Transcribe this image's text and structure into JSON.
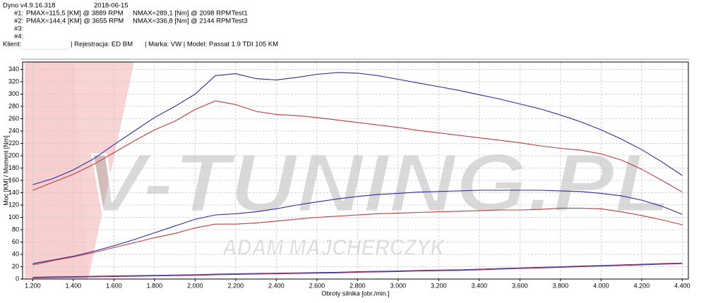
{
  "header": {
    "app": "Dyno v4.9.16.318",
    "date": "2018-06-15",
    "tests": [
      {
        "id": "#1:",
        "pmax": "PMAX=115,5 [KM] @ 3889 RPM",
        "nmax": "NMAX=289,1 [Nm] @ 2098 RPM",
        "name": "Test1"
      },
      {
        "id": "#2:",
        "pmax": "PMAX=144,4 [KM] @ 3655 RPM",
        "nmax": "NMAX=336,8 [Nm] @ 2144 RPM",
        "name": "Test3"
      }
    ],
    "slots": [
      "#3:",
      "#4:"
    ],
    "client": "Klient:",
    "registration": "| Rejestracja: ED BM",
    "vehicle": "| Marka: VW | Model: Passat 1.9 TDI 105 KM"
  },
  "chart_data": {
    "type": "line",
    "xlabel": "Obroty silnika [obr./min.]",
    "ylabel": "Moc [KM] / Moment [Nm]",
    "watermark": {
      "logo": "V-TUNING.PL",
      "author": "ADAM MAJCHERCZYK"
    },
    "x": [
      1200,
      1300,
      1400,
      1500,
      1600,
      1700,
      1800,
      1900,
      2000,
      2100,
      2200,
      2300,
      2400,
      2500,
      2600,
      2700,
      2800,
      2900,
      3000,
      3100,
      3200,
      3300,
      3400,
      3500,
      3600,
      3700,
      3800,
      3900,
      4000,
      4100,
      4200,
      4300,
      4400
    ],
    "xlim": [
      1150,
      4430
    ],
    "ylim": [
      0,
      352
    ],
    "xticks": [
      {
        "value": 1200,
        "label": "1.200"
      },
      {
        "value": 1400,
        "label": "1.400"
      },
      {
        "value": 1600,
        "label": "1.600"
      },
      {
        "value": 1800,
        "label": "1.800"
      },
      {
        "value": 2000,
        "label": "2.000"
      },
      {
        "value": 2200,
        "label": "2.200"
      },
      {
        "value": 2400,
        "label": "2.400"
      },
      {
        "value": 2600,
        "label": "2.600"
      },
      {
        "value": 2800,
        "label": "2.800"
      },
      {
        "value": 3000,
        "label": "3.000"
      },
      {
        "value": 3200,
        "label": "3.200"
      },
      {
        "value": 3400,
        "label": "3.400"
      },
      {
        "value": 3600,
        "label": "3.600"
      },
      {
        "value": 3800,
        "label": "3.800"
      },
      {
        "value": 4000,
        "label": "4.000"
      },
      {
        "value": 4200,
        "label": "4.200"
      },
      {
        "value": 4400,
        "label": "4.400"
      }
    ],
    "yticks": [
      0,
      20,
      40,
      60,
      80,
      100,
      120,
      140,
      160,
      180,
      200,
      220,
      240,
      260,
      280,
      300,
      320,
      340
    ],
    "grid": true,
    "series": [
      {
        "color": "#2b2b9c",
        "values": [
          153,
          163,
          177,
          195,
          218,
          240,
          262,
          280,
          300,
          330,
          333,
          325,
          323,
          327,
          332,
          335,
          334,
          330,
          324,
          318,
          312,
          306,
          299,
          292,
          284,
          276,
          266,
          255,
          242,
          227,
          210,
          190,
          168
        ]
      },
      {
        "color": "#c03a3a",
        "values": [
          144,
          157,
          170,
          186,
          205,
          224,
          242,
          256,
          275,
          289,
          283,
          272,
          267,
          265,
          262,
          258,
          254,
          250,
          246,
          241,
          237,
          233,
          229,
          225,
          221,
          216,
          212,
          209,
          203,
          193,
          178,
          160,
          141
        ]
      },
      {
        "color": "#2b2b9c",
        "values": [
          25,
          31,
          37,
          45,
          54,
          64,
          75,
          86,
          97,
          104,
          106,
          109,
          114,
          120,
          125,
          130,
          134,
          137,
          139,
          141,
          142,
          143,
          144,
          144,
          144,
          144,
          143,
          142,
          139,
          135,
          128,
          118,
          105
        ]
      },
      {
        "color": "#c03a3a",
        "values": [
          23,
          30,
          36,
          43,
          51,
          59,
          67,
          74,
          83,
          89,
          89,
          91,
          94,
          97,
          100,
          102,
          104,
          106,
          107,
          108,
          109,
          110,
          111,
          112,
          112,
          113,
          115,
          115,
          114,
          109,
          103,
          96,
          88
        ]
      },
      {
        "color": "#3a3a9c",
        "values": [
          3,
          3.5,
          4,
          4.5,
          5,
          5.5,
          6,
          6.5,
          7,
          8,
          8.5,
          9,
          9.5,
          10,
          10.5,
          11,
          12,
          12.5,
          13,
          14,
          14.5,
          15,
          16,
          17,
          18,
          19,
          20,
          21,
          22,
          23,
          24,
          25,
          26
        ]
      },
      {
        "color": "#a0306a",
        "values": [
          2,
          2.5,
          3,
          3.5,
          4,
          4.5,
          5,
          5.5,
          6,
          7,
          7.5,
          8,
          8.5,
          9,
          9.5,
          10,
          11,
          11.5,
          12,
          13,
          13.5,
          14,
          15,
          16,
          17,
          18,
          19,
          20,
          21,
          22,
          23,
          24,
          25
        ]
      }
    ]
  }
}
